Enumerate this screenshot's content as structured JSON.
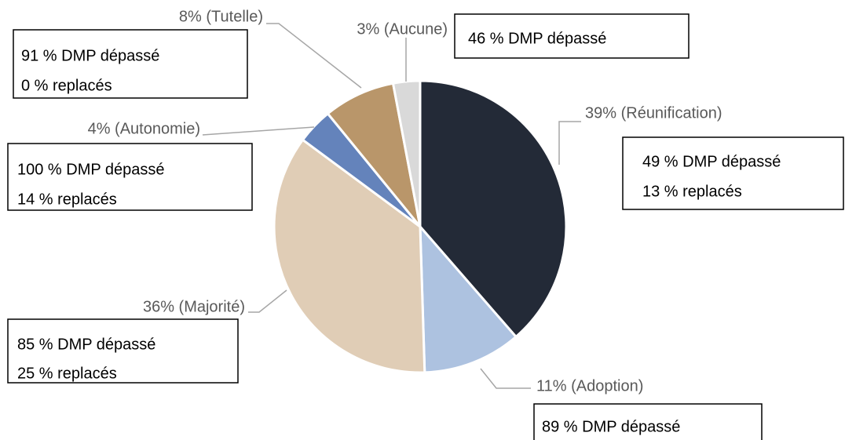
{
  "chart_data": {
    "type": "pie",
    "values": [
      39,
      11,
      36,
      4,
      8,
      3
    ],
    "value_labels": [
      "39% (Réunification)",
      "11% (Adoption)",
      "36% (Majorité)",
      "4% (Autonomie)",
      "8% (Tutelle)",
      "3% (Aucune)"
    ],
    "colors": [
      "#232a37",
      "#adc2e0",
      "#e0cdb6",
      "#6483bb",
      "#b9966a",
      "#d9d9d9"
    ],
    "annotations": [
      [
        "49 % DMP dépassé",
        "13 % replacés"
      ],
      [
        "89 % DMP dépassé"
      ],
      [
        "85 % DMP dépassé",
        "25 % replacés"
      ],
      [
        "100 % DMP dépassé",
        "14 % replacés"
      ],
      [
        "91 % DMP dépassé",
        "0 % replacés"
      ],
      [
        "46 % DMP dépassé"
      ]
    ]
  }
}
